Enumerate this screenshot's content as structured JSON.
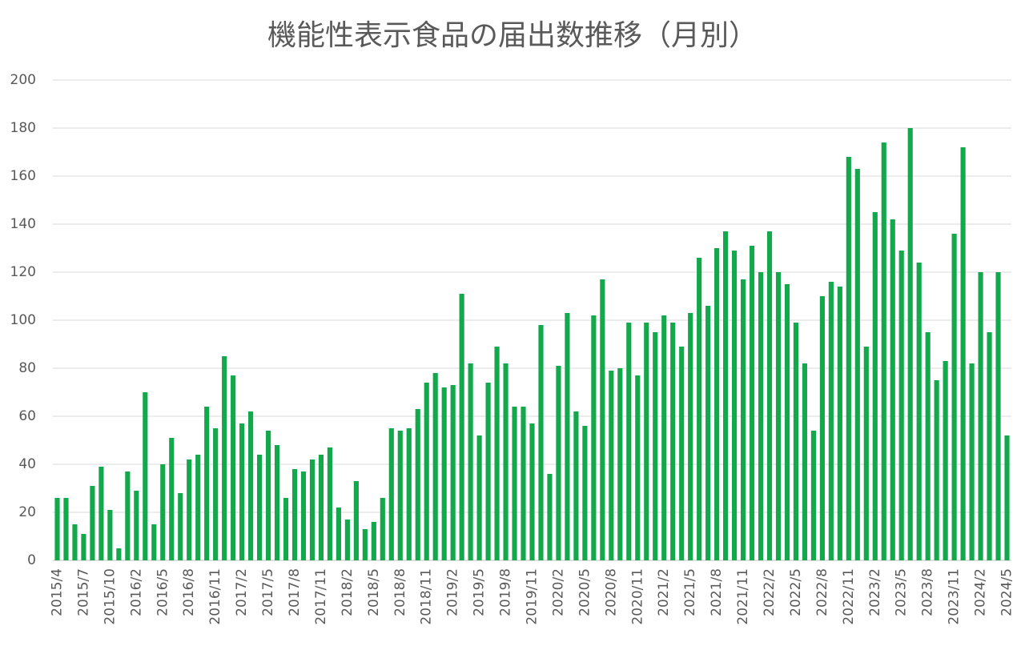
{
  "chart_data": {
    "type": "bar",
    "title": "機能性表示食品の届出数推移（月別）",
    "categories": [
      "2015/4",
      null,
      null,
      "2015/7",
      null,
      null,
      "2015/10",
      null,
      null,
      "2016/2",
      null,
      null,
      "2016/5",
      null,
      null,
      "2016/8",
      null,
      null,
      "2016/11",
      null,
      null,
      "2017/2",
      null,
      null,
      "2017/5",
      null,
      null,
      "2017/8",
      null,
      null,
      "2017/11",
      null,
      null,
      "2018/2",
      null,
      null,
      "2018/5",
      null,
      null,
      "2018/8",
      null,
      null,
      "2018/11",
      null,
      null,
      "2019/2",
      null,
      null,
      "2019/5",
      null,
      null,
      "2019/8",
      null,
      null,
      "2019/11",
      null,
      null,
      "2020/2",
      null,
      null,
      "2020/5",
      null,
      null,
      "2020/8",
      null,
      null,
      "2020/11",
      null,
      null,
      "2021/2",
      null,
      null,
      "2021/5",
      null,
      null,
      "2021/8",
      null,
      null,
      "2021/11",
      null,
      null,
      "2022/2",
      null,
      null,
      "2022/5",
      null,
      null,
      "2022/8",
      null,
      null,
      "2022/11",
      null,
      null,
      "2023/2",
      null,
      null,
      "2023/5",
      null,
      null,
      "2023/8",
      null,
      null,
      "2023/11",
      null,
      null,
      "2024/2",
      null,
      null,
      "2024/5"
    ],
    "values": [
      26,
      26,
      15,
      11,
      31,
      39,
      21,
      5,
      37,
      29,
      70,
      15,
      40,
      51,
      28,
      42,
      44,
      64,
      55,
      85,
      77,
      57,
      62,
      44,
      54,
      48,
      26,
      38,
      37,
      42,
      44,
      47,
      22,
      17,
      33,
      13,
      16,
      26,
      55,
      54,
      55,
      63,
      74,
      78,
      72,
      73,
      111,
      82,
      52,
      74,
      89,
      82,
      64,
      64,
      57,
      98,
      36,
      81,
      103,
      62,
      56,
      102,
      117,
      79,
      80,
      99,
      77,
      99,
      95,
      102,
      99,
      89,
      103,
      126,
      106,
      130,
      137,
      129,
      117,
      131,
      120,
      137,
      120,
      115,
      99,
      82,
      54,
      110,
      116,
      114,
      168,
      163,
      89,
      145,
      174,
      142,
      129,
      180,
      124,
      95,
      75,
      83,
      136,
      172,
      82,
      120,
      95,
      120,
      52
    ],
    "color": "#12a84b",
    "ylim": [
      0,
      200
    ],
    "yticks": [
      0,
      20,
      40,
      60,
      80,
      100,
      120,
      140,
      160,
      180,
      200
    ],
    "grid": true
  }
}
